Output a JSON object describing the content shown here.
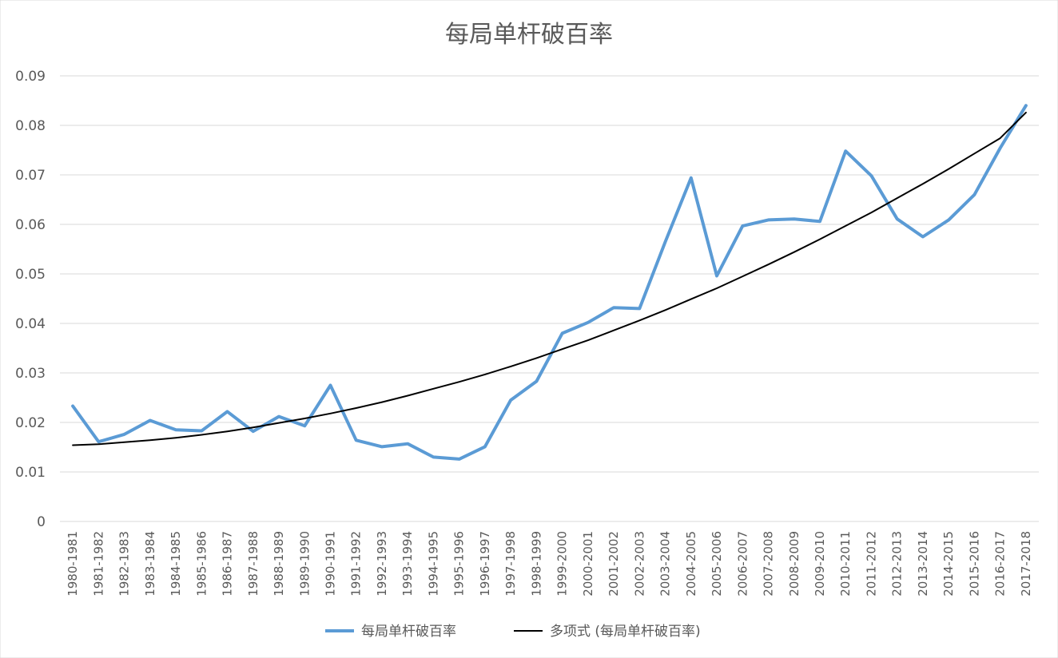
{
  "chart_data": {
    "type": "line",
    "title": "每局单杆破百率",
    "xlabel": "",
    "ylabel": "",
    "ylim": [
      0,
      0.09
    ],
    "yticks": [
      "0",
      "0.01",
      "0.02",
      "0.03",
      "0.04",
      "0.05",
      "0.06",
      "0.07",
      "0.08",
      "0.09"
    ],
    "grid": true,
    "legend_position": "bottom",
    "categories": [
      "1980-1981",
      "1981-1982",
      "1982-1983",
      "1983-1984",
      "1984-1985",
      "1985-1986",
      "1986-1987",
      "1987-1988",
      "1988-1989",
      "1989-1990",
      "1990-1991",
      "1991-1992",
      "1992-1993",
      "1993-1994",
      "1994-1995",
      "1995-1996",
      "1996-1997",
      "1997-1998",
      "1998-1999",
      "1999-2000",
      "2000-2001",
      "2001-2002",
      "2002-2003",
      "2003-2004",
      "2004-2005",
      "2005-2006",
      "2006-2007",
      "2007-2008",
      "2008-2009",
      "2009-2010",
      "2010-2011",
      "2011-2012",
      "2012-2013",
      "2013-2014",
      "2014-2015",
      "2015-2016",
      "2016-2017",
      "2017-2018"
    ],
    "series": [
      {
        "name": "每局单杆破百率",
        "color": "#5b9bd5",
        "values": [
          0.0233,
          0.0161,
          0.0176,
          0.0204,
          0.0185,
          0.0183,
          0.0222,
          0.0182,
          0.0212,
          0.0193,
          0.0275,
          0.0164,
          0.0151,
          0.0157,
          0.013,
          0.0126,
          0.0151,
          0.0245,
          0.0283,
          0.038,
          0.0402,
          0.0432,
          0.043,
          0.0565,
          0.0694,
          0.0496,
          0.0597,
          0.0609,
          0.0611,
          0.0606,
          0.0748,
          0.0698,
          0.0611,
          0.0575,
          0.0609,
          0.066,
          0.0754,
          0.084
        ]
      },
      {
        "name": "多项式 (每局单杆破百率)",
        "color": "#000000",
        "values": [
          0.0154,
          0.0156,
          0.016,
          0.0164,
          0.0169,
          0.0175,
          0.0182,
          0.019,
          0.0199,
          0.0208,
          0.0218,
          0.0229,
          0.0241,
          0.0254,
          0.0268,
          0.0282,
          0.0297,
          0.0313,
          0.033,
          0.0348,
          0.0366,
          0.0386,
          0.0406,
          0.0427,
          0.0449,
          0.0471,
          0.0495,
          0.0519,
          0.0544,
          0.057,
          0.0597,
          0.0624,
          0.0653,
          0.0682,
          0.0712,
          0.0743,
          0.0774,
          0.0826
        ]
      }
    ]
  }
}
